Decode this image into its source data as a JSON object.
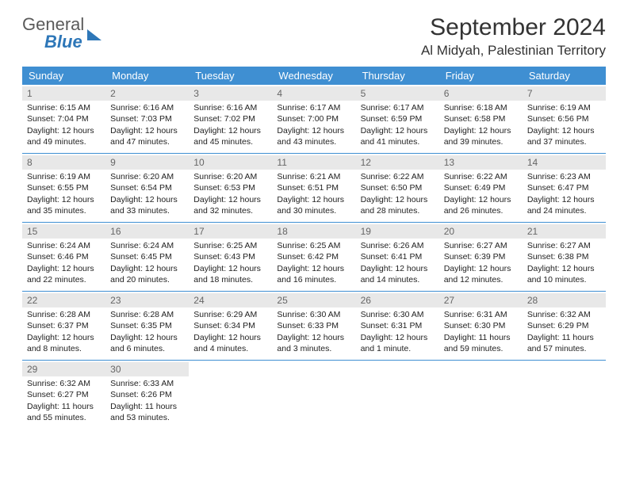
{
  "brand": {
    "line1": "General",
    "line2": "Blue"
  },
  "title": "September 2024",
  "location": "Al Midyah, Palestinian Territory",
  "colors": {
    "header_bg": "#3f8fd2",
    "header_text": "#ffffff",
    "daynum_bg": "#e8e8e8",
    "border": "#3f8fd2",
    "brand_gray": "#5a5a5a",
    "brand_blue": "#2e77b8",
    "text": "#222222",
    "background": "#ffffff"
  },
  "weekdays": [
    "Sunday",
    "Monday",
    "Tuesday",
    "Wednesday",
    "Thursday",
    "Friday",
    "Saturday"
  ],
  "days": [
    {
      "n": 1,
      "sr": "6:15 AM",
      "ss": "7:04 PM",
      "dl": "12 hours and 49 minutes."
    },
    {
      "n": 2,
      "sr": "6:16 AM",
      "ss": "7:03 PM",
      "dl": "12 hours and 47 minutes."
    },
    {
      "n": 3,
      "sr": "6:16 AM",
      "ss": "7:02 PM",
      "dl": "12 hours and 45 minutes."
    },
    {
      "n": 4,
      "sr": "6:17 AM",
      "ss": "7:00 PM",
      "dl": "12 hours and 43 minutes."
    },
    {
      "n": 5,
      "sr": "6:17 AM",
      "ss": "6:59 PM",
      "dl": "12 hours and 41 minutes."
    },
    {
      "n": 6,
      "sr": "6:18 AM",
      "ss": "6:58 PM",
      "dl": "12 hours and 39 minutes."
    },
    {
      "n": 7,
      "sr": "6:19 AM",
      "ss": "6:56 PM",
      "dl": "12 hours and 37 minutes."
    },
    {
      "n": 8,
      "sr": "6:19 AM",
      "ss": "6:55 PM",
      "dl": "12 hours and 35 minutes."
    },
    {
      "n": 9,
      "sr": "6:20 AM",
      "ss": "6:54 PM",
      "dl": "12 hours and 33 minutes."
    },
    {
      "n": 10,
      "sr": "6:20 AM",
      "ss": "6:53 PM",
      "dl": "12 hours and 32 minutes."
    },
    {
      "n": 11,
      "sr": "6:21 AM",
      "ss": "6:51 PM",
      "dl": "12 hours and 30 minutes."
    },
    {
      "n": 12,
      "sr": "6:22 AM",
      "ss": "6:50 PM",
      "dl": "12 hours and 28 minutes."
    },
    {
      "n": 13,
      "sr": "6:22 AM",
      "ss": "6:49 PM",
      "dl": "12 hours and 26 minutes."
    },
    {
      "n": 14,
      "sr": "6:23 AM",
      "ss": "6:47 PM",
      "dl": "12 hours and 24 minutes."
    },
    {
      "n": 15,
      "sr": "6:24 AM",
      "ss": "6:46 PM",
      "dl": "12 hours and 22 minutes."
    },
    {
      "n": 16,
      "sr": "6:24 AM",
      "ss": "6:45 PM",
      "dl": "12 hours and 20 minutes."
    },
    {
      "n": 17,
      "sr": "6:25 AM",
      "ss": "6:43 PM",
      "dl": "12 hours and 18 minutes."
    },
    {
      "n": 18,
      "sr": "6:25 AM",
      "ss": "6:42 PM",
      "dl": "12 hours and 16 minutes."
    },
    {
      "n": 19,
      "sr": "6:26 AM",
      "ss": "6:41 PM",
      "dl": "12 hours and 14 minutes."
    },
    {
      "n": 20,
      "sr": "6:27 AM",
      "ss": "6:39 PM",
      "dl": "12 hours and 12 minutes."
    },
    {
      "n": 21,
      "sr": "6:27 AM",
      "ss": "6:38 PM",
      "dl": "12 hours and 10 minutes."
    },
    {
      "n": 22,
      "sr": "6:28 AM",
      "ss": "6:37 PM",
      "dl": "12 hours and 8 minutes."
    },
    {
      "n": 23,
      "sr": "6:28 AM",
      "ss": "6:35 PM",
      "dl": "12 hours and 6 minutes."
    },
    {
      "n": 24,
      "sr": "6:29 AM",
      "ss": "6:34 PM",
      "dl": "12 hours and 4 minutes."
    },
    {
      "n": 25,
      "sr": "6:30 AM",
      "ss": "6:33 PM",
      "dl": "12 hours and 3 minutes."
    },
    {
      "n": 26,
      "sr": "6:30 AM",
      "ss": "6:31 PM",
      "dl": "12 hours and 1 minute."
    },
    {
      "n": 27,
      "sr": "6:31 AM",
      "ss": "6:30 PM",
      "dl": "11 hours and 59 minutes."
    },
    {
      "n": 28,
      "sr": "6:32 AM",
      "ss": "6:29 PM",
      "dl": "11 hours and 57 minutes."
    },
    {
      "n": 29,
      "sr": "6:32 AM",
      "ss": "6:27 PM",
      "dl": "11 hours and 55 minutes."
    },
    {
      "n": 30,
      "sr": "6:33 AM",
      "ss": "6:26 PM",
      "dl": "11 hours and 53 minutes."
    }
  ],
  "labels": {
    "sunrise": "Sunrise:",
    "sunset": "Sunset:",
    "daylight": "Daylight:"
  },
  "layout": {
    "start_weekday": 0,
    "total_cells": 35
  }
}
